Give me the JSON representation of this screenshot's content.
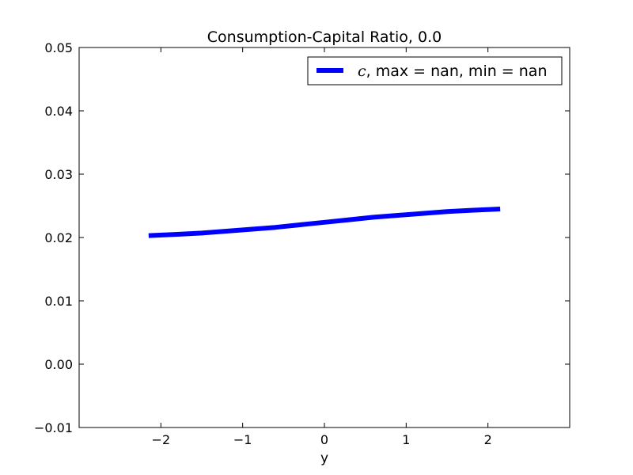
{
  "chart_data": {
    "type": "line",
    "title": "Consumption-Capital Ratio, 0.0",
    "xlabel": "y",
    "ylabel": "",
    "xlim": [
      -3,
      3
    ],
    "ylim": [
      -0.01,
      0.05
    ],
    "xticks": [
      -2,
      -1,
      0,
      1,
      2
    ],
    "xtick_labels": [
      "−2",
      "−1",
      "0",
      "1",
      "2"
    ],
    "yticks": [
      -0.01,
      0.0,
      0.01,
      0.02,
      0.03,
      0.04,
      0.05
    ],
    "ytick_labels": [
      "−0.01",
      "0.00",
      "0.01",
      "0.02",
      "0.03",
      "0.04",
      "0.05"
    ],
    "grid": false,
    "legend_position": "top-right",
    "series": [
      {
        "name": "c, max = nan, min = nan",
        "name_symbol": "c",
        "name_rest": ", max = nan, min = nan",
        "color": "#0000ff",
        "x": [
          -2.15,
          -1.8,
          -1.5,
          -1.2,
          -0.9,
          -0.6,
          -0.3,
          0.0,
          0.3,
          0.6,
          0.9,
          1.2,
          1.5,
          1.8,
          2.15
        ],
        "y": [
          0.0203,
          0.0205,
          0.0207,
          0.021,
          0.0213,
          0.0216,
          0.022,
          0.0224,
          0.0228,
          0.0232,
          0.0235,
          0.0238,
          0.0241,
          0.0243,
          0.0245
        ]
      }
    ]
  }
}
